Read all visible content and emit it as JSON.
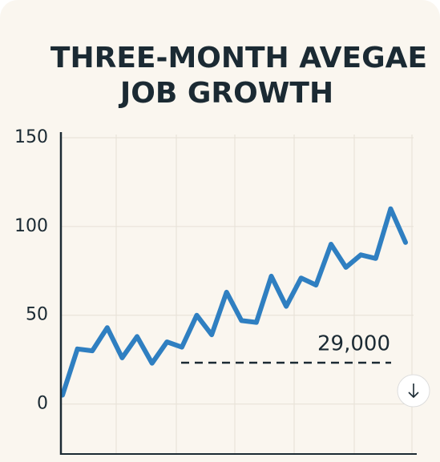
{
  "chart_data": {
    "type": "line",
    "title_lines": [
      "THREE-MONTH AVEGAE",
      "JOB GROWTH"
    ],
    "values": [
      5,
      31,
      30,
      43,
      26,
      38,
      23,
      35,
      32,
      50,
      39,
      63,
      47,
      46,
      72,
      55,
      71,
      67,
      90,
      77,
      84,
      82,
      110,
      91
    ],
    "color": "#2f7fc1",
    "ylim": [
      -25,
      150
    ],
    "yticks": [
      0,
      50,
      100,
      150
    ],
    "grid": true,
    "annotation": "29,000"
  }
}
